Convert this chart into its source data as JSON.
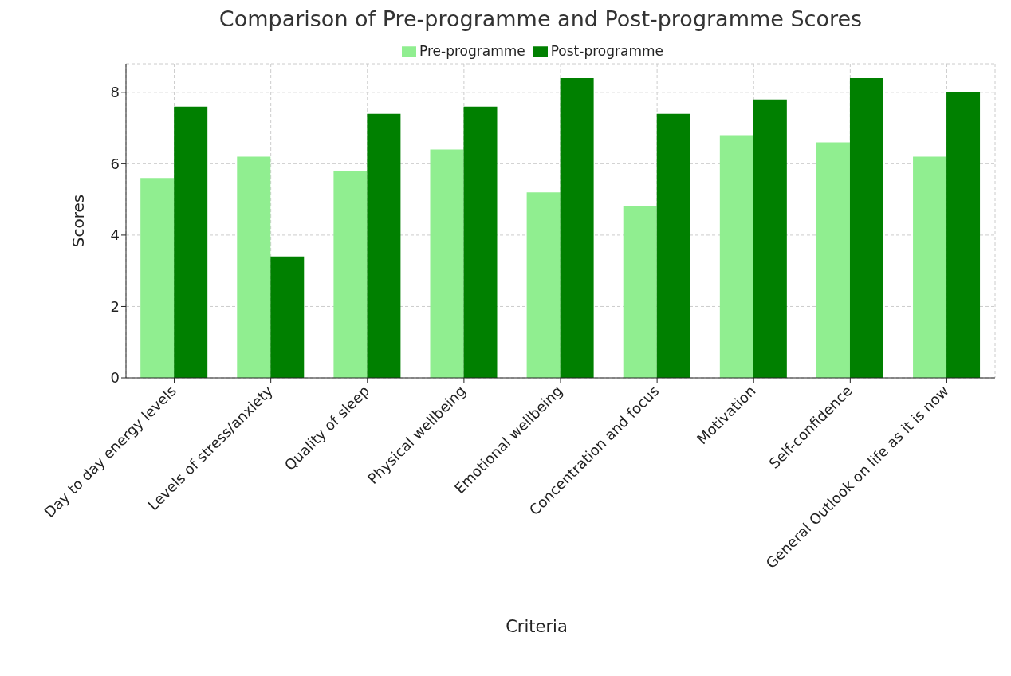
{
  "chart_data": {
    "type": "bar",
    "title": "Comparison of Pre-programme and Post-programme Scores",
    "xlabel": "Criteria",
    "ylabel": "Scores",
    "categories": [
      "Day to day energy levels",
      "Levels of stress/anxiety",
      "Quality of sleep",
      "Physical wellbeing",
      "Emotional wellbeing",
      "Concentration and focus",
      "Motivation",
      "Self-confidence",
      "General Outlook on life as it is now"
    ],
    "series": [
      {
        "name": "Pre-programme",
        "color": "#90ee90",
        "values": [
          5.6,
          6.2,
          5.8,
          6.4,
          5.2,
          4.8,
          6.8,
          6.6,
          6.2
        ]
      },
      {
        "name": "Post-programme",
        "color": "#008000",
        "values": [
          7.6,
          3.4,
          7.4,
          7.6,
          8.4,
          7.4,
          7.8,
          8.4,
          8.0
        ]
      }
    ],
    "ylim": [
      0,
      8.8
    ],
    "yticks": [
      0,
      2,
      4,
      6,
      8
    ],
    "grid": true,
    "legend": "top"
  }
}
